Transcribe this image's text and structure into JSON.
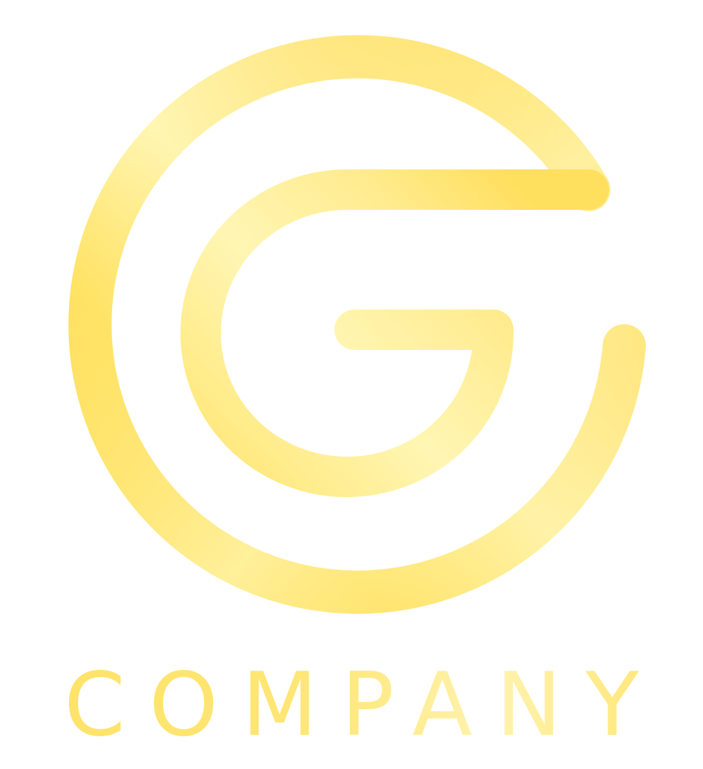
{
  "brand": {
    "wordmark": "COMPANY"
  },
  "logo": {
    "icon": "letter-g-spiral-icon",
    "colors": {
      "gold": "#ffdf5e",
      "light_gold": "#fff6b4",
      "mid_gold": "#ffe888"
    }
  }
}
